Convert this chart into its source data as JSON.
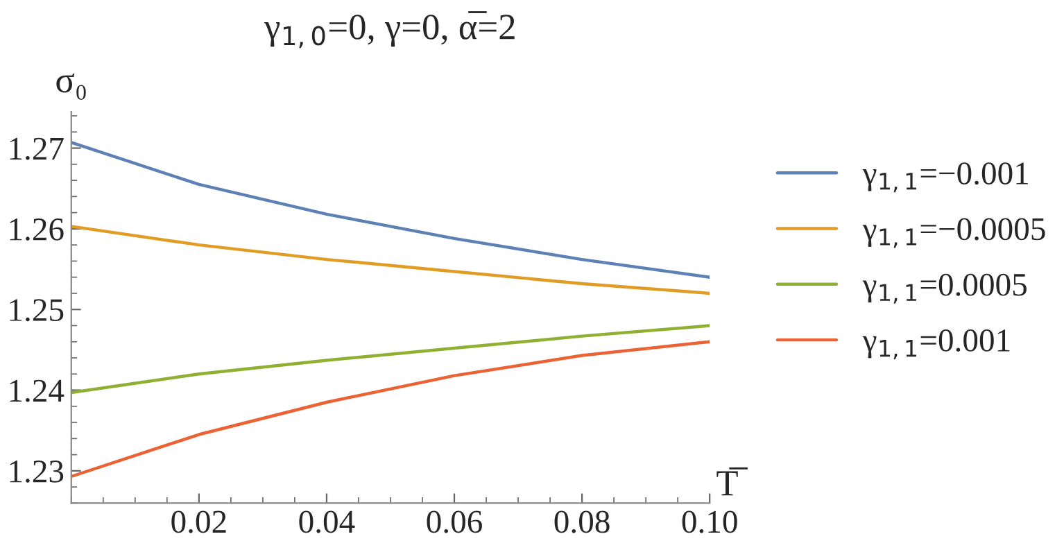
{
  "chart_data": {
    "type": "line",
    "title": "γ$_{1,0}$=0, γ=0, α̅=2",
    "xlabel": "T̅",
    "ylabel": "σ₀",
    "x": [
      0,
      0.02,
      0.04,
      0.06,
      0.08,
      0.1
    ],
    "series": [
      {
        "name": "γ$_{1,1}$=−0.001",
        "color": "#5e81b5",
        "values": [
          1.2707,
          1.2655,
          1.2618,
          1.2588,
          1.2562,
          1.254
        ]
      },
      {
        "name": "γ$_{1,1}$=−0.0005",
        "color": "#e19c24",
        "values": [
          1.2603,
          1.258,
          1.2562,
          1.2547,
          1.2532,
          1.252
        ]
      },
      {
        "name": "γ$_{1,1}$=0.0005",
        "color": "#8fb032",
        "values": [
          1.2397,
          1.242,
          1.2437,
          1.2452,
          1.2467,
          1.248
        ]
      },
      {
        "name": "γ$_{1,1}$=0.001",
        "color": "#eb6235",
        "values": [
          1.2293,
          1.2345,
          1.2385,
          1.2418,
          1.2443,
          1.246
        ]
      }
    ],
    "xlim": [
      0,
      0.1
    ],
    "ylim": [
      1.226,
      1.2745
    ],
    "xticks": [
      0.02,
      0.04,
      0.06,
      0.08,
      {
        "value": 0.1,
        "label": "0.10"
      }
    ],
    "yticks": [
      1.23,
      1.24,
      1.25,
      1.26,
      1.27
    ],
    "grid": false,
    "legend": "right",
    "marker": "none",
    "line_style": "solid"
  }
}
